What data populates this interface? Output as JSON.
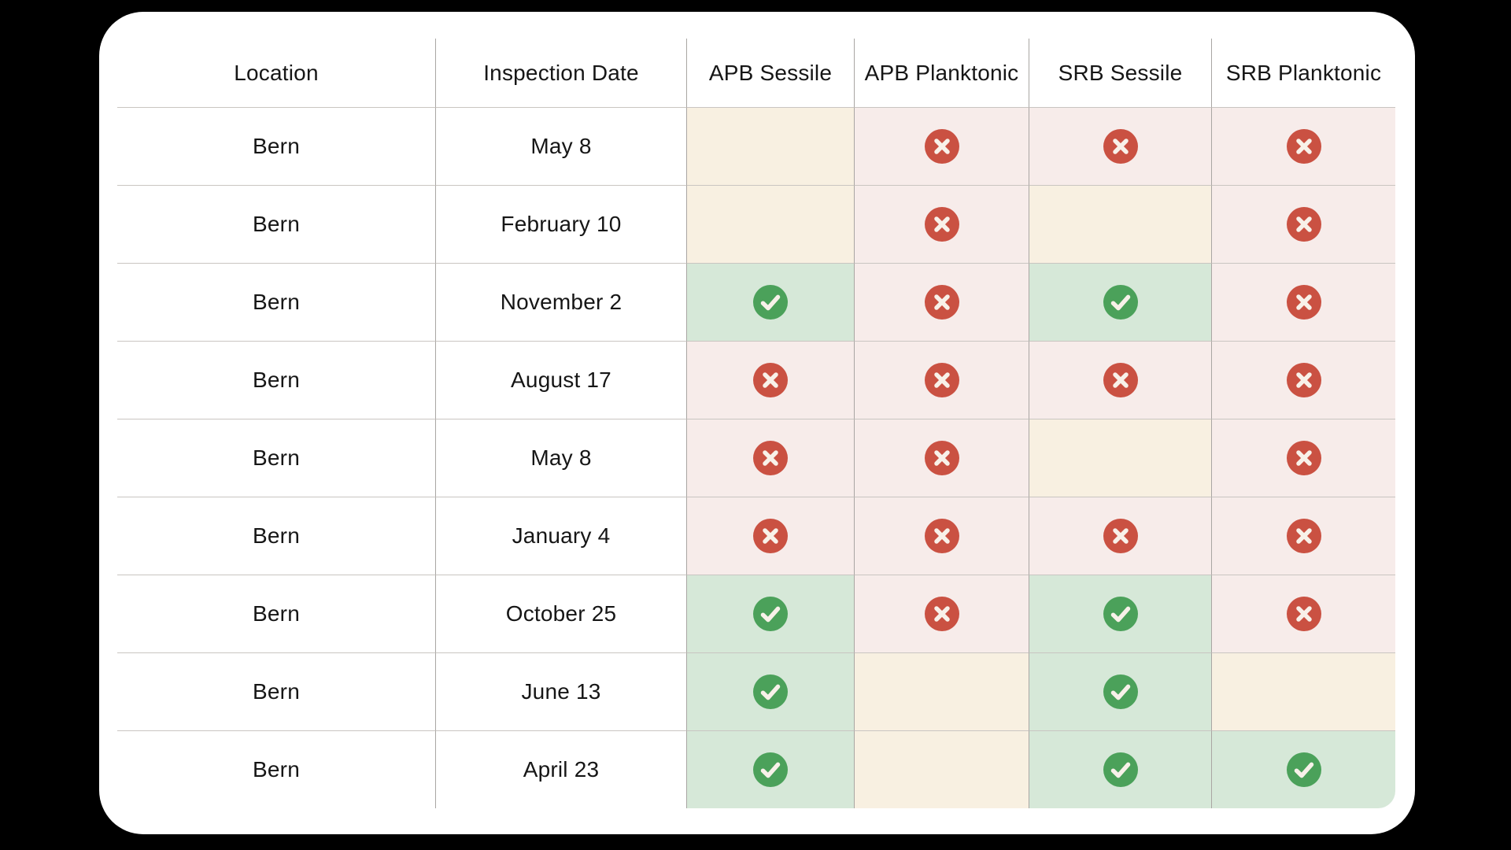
{
  "table": {
    "columns": [
      {
        "label": "Location"
      },
      {
        "label": "Inspection Date"
      },
      {
        "label": "APB Sessile"
      },
      {
        "label": "APB Planktonic"
      },
      {
        "label": "SRB Sessile"
      },
      {
        "label": "SRB Planktonic"
      }
    ],
    "rows": [
      {
        "location": "Bern",
        "date": "May 8",
        "results": [
          "none",
          "fail",
          "fail",
          "fail"
        ]
      },
      {
        "location": "Bern",
        "date": "February 10",
        "results": [
          "none",
          "fail",
          "none",
          "fail"
        ]
      },
      {
        "location": "Bern",
        "date": "November 2",
        "results": [
          "pass",
          "fail",
          "pass",
          "fail"
        ]
      },
      {
        "location": "Bern",
        "date": "August 17",
        "results": [
          "fail",
          "fail",
          "fail",
          "fail"
        ]
      },
      {
        "location": "Bern",
        "date": "May 8",
        "results": [
          "fail",
          "fail",
          "none",
          "fail"
        ]
      },
      {
        "location": "Bern",
        "date": "January 4",
        "results": [
          "fail",
          "fail",
          "fail",
          "fail"
        ]
      },
      {
        "location": "Bern",
        "date": "October 25",
        "results": [
          "pass",
          "fail",
          "pass",
          "fail"
        ]
      },
      {
        "location": "Bern",
        "date": "June 13",
        "results": [
          "pass",
          "none",
          "pass",
          "none"
        ]
      },
      {
        "location": "Bern",
        "date": "April 23",
        "results": [
          "pass",
          "none",
          "pass",
          "pass"
        ]
      }
    ]
  },
  "icons": {
    "pass": "check-circle-icon",
    "fail": "x-circle-icon",
    "none": "empty-cell"
  },
  "colors": {
    "page_background": "#000000",
    "card_background": "#ffffff",
    "pass_circle": "#4ba15a",
    "fail_circle": "#ca5142",
    "icon_glyph": "#f8f1e9",
    "pass_cell_background": "#d6e8d8",
    "fail_cell_background": "#f7ecea",
    "none_cell_background": "#f8f0e1",
    "row_line": "#c9c5c1",
    "column_line": "#a9a6a3",
    "text": "#161616"
  },
  "chart_data": {
    "type": "table",
    "title": "",
    "columns": [
      "Location",
      "Inspection Date",
      "APB Sessile",
      "APB Planktonic",
      "SRB Sessile",
      "SRB Planktonic"
    ],
    "rows": [
      [
        "Bern",
        "May 8",
        "blank",
        "fail",
        "fail",
        "fail"
      ],
      [
        "Bern",
        "February 10",
        "blank",
        "fail",
        "blank",
        "fail"
      ],
      [
        "Bern",
        "November 2",
        "pass",
        "fail",
        "pass",
        "fail"
      ],
      [
        "Bern",
        "August 17",
        "fail",
        "fail",
        "fail",
        "fail"
      ],
      [
        "Bern",
        "May 8",
        "fail",
        "fail",
        "blank",
        "fail"
      ],
      [
        "Bern",
        "January 4",
        "fail",
        "fail",
        "fail",
        "fail"
      ],
      [
        "Bern",
        "October 25",
        "pass",
        "fail",
        "pass",
        "fail"
      ],
      [
        "Bern",
        "June 13",
        "pass",
        "blank",
        "pass",
        "blank"
      ],
      [
        "Bern",
        "April 23",
        "pass",
        "blank",
        "pass",
        "pass"
      ]
    ],
    "cell_encoding": {
      "pass": "green check circle on light green cell",
      "fail": "red x circle on light pink cell",
      "blank": "empty cream cell"
    },
    "layout": "rounded white card on black background; thin gray row and column dividers"
  }
}
